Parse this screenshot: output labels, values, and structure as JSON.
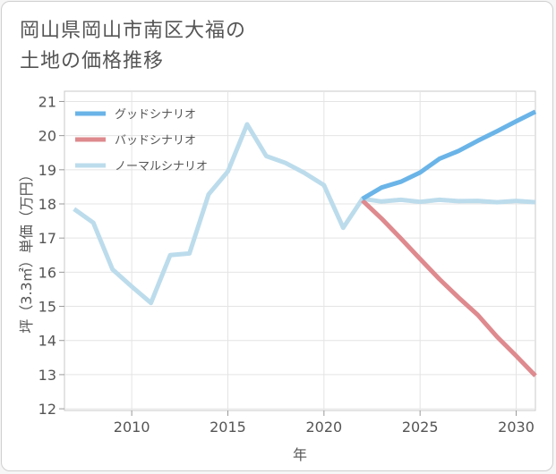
{
  "title": [
    "岡山県岡山市南区大福の",
    "土地の価格推移"
  ],
  "chart_data": {
    "type": "line",
    "xlabel": "年",
    "ylabel": "坪（3.3㎡）単価（万円）",
    "xlim": [
      2006.5,
      2031
    ],
    "ylim": [
      11.95,
      21.3
    ],
    "xticks": [
      2010,
      2015,
      2020,
      2025,
      2030
    ],
    "yticks": [
      12,
      13,
      14,
      15,
      16,
      17,
      18,
      19,
      20,
      21
    ],
    "legend_position": "top-left",
    "series": [
      {
        "name": "グッドシナリオ",
        "color": "#6ab4e8",
        "x": [
          2022,
          2023,
          2024,
          2025,
          2026,
          2027,
          2028,
          2029,
          2030,
          2031
        ],
        "values": [
          18.15,
          18.48,
          18.65,
          18.92,
          19.32,
          19.55,
          19.85,
          20.13,
          20.42,
          20.7
        ]
      },
      {
        "name": "バッドシナリオ",
        "color": "#de8a8e",
        "x": [
          2022,
          2023,
          2024,
          2025,
          2026,
          2027,
          2028,
          2029,
          2030,
          2031
        ],
        "values": [
          18.1,
          17.57,
          16.99,
          16.39,
          15.8,
          15.26,
          14.75,
          14.11,
          13.55,
          12.97
        ]
      },
      {
        "name": "ノーマルシナリオ",
        "color": "#bcdcec",
        "x": [
          2007,
          2008,
          2009,
          2010,
          2011,
          2012,
          2013,
          2014,
          2015,
          2016,
          2017,
          2018,
          2019,
          2020,
          2021,
          2022,
          2023,
          2024,
          2025,
          2026,
          2027,
          2028,
          2029,
          2030,
          2031
        ],
        "values": [
          17.85,
          17.45,
          16.08,
          15.58,
          15.1,
          16.5,
          16.55,
          18.28,
          18.95,
          20.33,
          19.4,
          19.2,
          18.9,
          18.55,
          17.3,
          18.15,
          18.07,
          18.12,
          18.06,
          18.12,
          18.08,
          18.09,
          18.05,
          18.09,
          18.05
        ]
      }
    ]
  }
}
